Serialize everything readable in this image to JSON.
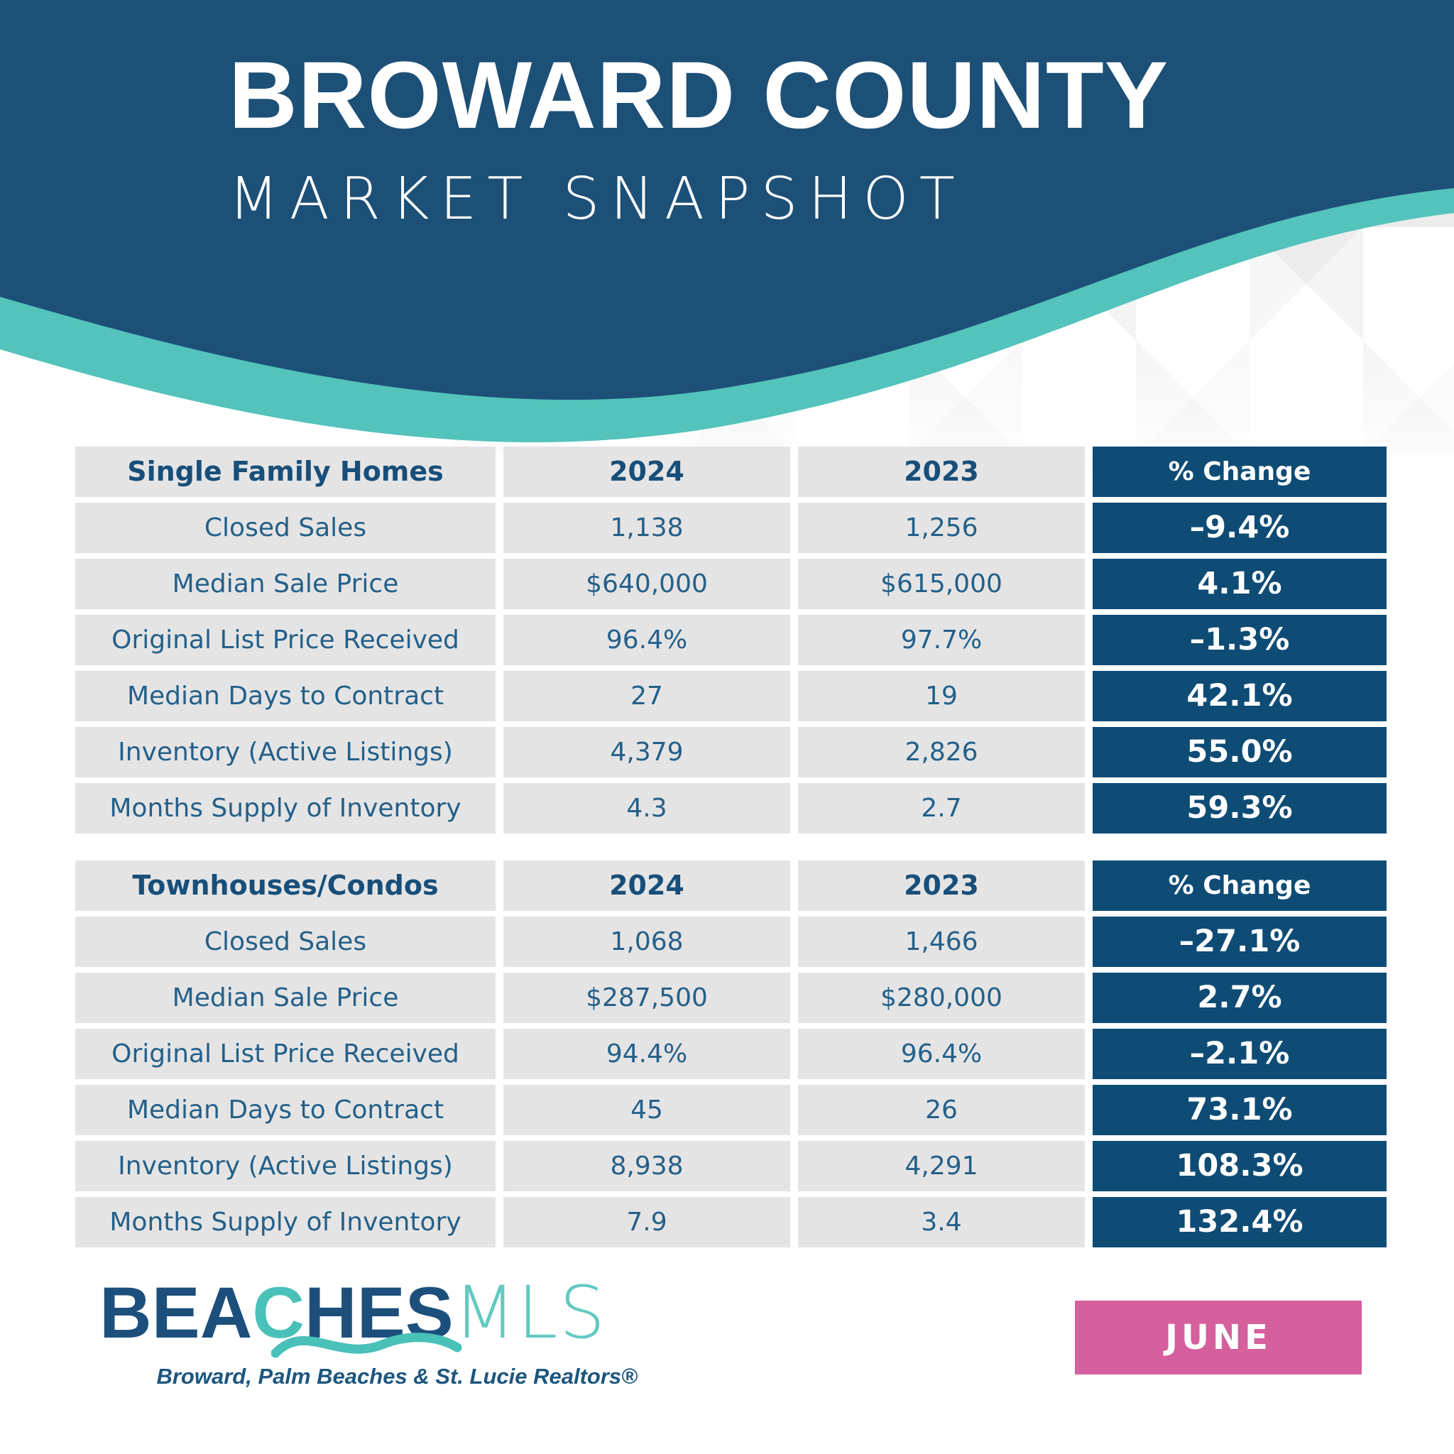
{
  "header": {
    "title": "BROWARD COUNTY",
    "subtitle": "MARKET SNAPSHOT"
  },
  "chart_data": [
    {
      "type": "table",
      "title": "Single Family Homes",
      "columns": [
        "2024",
        "2023",
        "% Change"
      ],
      "rows": [
        {
          "label": "Closed Sales",
          "y2024": "1,138",
          "y2023": "1,256",
          "change": "–9.4%"
        },
        {
          "label": "Median Sale Price",
          "y2024": "$640,000",
          "y2023": "$615,000",
          "change": "4.1%"
        },
        {
          "label": "Original List Price Received",
          "y2024": "96.4%",
          "y2023": "97.7%",
          "change": "–1.3%"
        },
        {
          "label": "Median Days to Contract",
          "y2024": "27",
          "y2023": "19",
          "change": "42.1%"
        },
        {
          "label": "Inventory (Active Listings)",
          "y2024": "4,379",
          "y2023": "2,826",
          "change": "55.0%"
        },
        {
          "label": "Months Supply of Inventory",
          "y2024": "4.3",
          "y2023": "2.7",
          "change": "59.3%"
        }
      ]
    },
    {
      "type": "table",
      "title": "Townhouses/Condos",
      "columns": [
        "2024",
        "2023",
        "% Change"
      ],
      "rows": [
        {
          "label": "Closed Sales",
          "y2024": "1,068",
          "y2023": "1,466",
          "change": "–27.1%"
        },
        {
          "label": "Median Sale Price",
          "y2024": "$287,500",
          "y2023": "$280,000",
          "change": "2.7%"
        },
        {
          "label": "Original List Price Received",
          "y2024": "94.4%",
          "y2023": "96.4%",
          "change": "–2.1%"
        },
        {
          "label": "Median Days to Contract",
          "y2024": "45",
          "y2023": "26",
          "change": "73.1%"
        },
        {
          "label": "Inventory (Active Listings)",
          "y2024": "8,938",
          "y2023": "4,291",
          "change": "108.3%"
        },
        {
          "label": "Months Supply of Inventory",
          "y2024": "7.9",
          "y2023": "3.4",
          "change": "132.4%"
        }
      ]
    }
  ],
  "footer": {
    "logo": {
      "part1": "BEA",
      "part2": "C",
      "part3": "HES",
      "part4": "MLS"
    },
    "tagline": "Broward, Palm Beaches & St. Lucie Realtors®",
    "month_label": "JUNE"
  },
  "colors": {
    "navy": "#1d5077",
    "table_navy": "#0e4c75",
    "teal": "#53c3bb",
    "cell_gray": "#e5e4e4",
    "pink": "#d65f9e",
    "text_blue": "#23608a",
    "header_text": "#174f7a",
    "logo_navy": "#1d4f7c",
    "logo_teal": "#49c1b9",
    "logo_mls": "#63c9c1"
  }
}
